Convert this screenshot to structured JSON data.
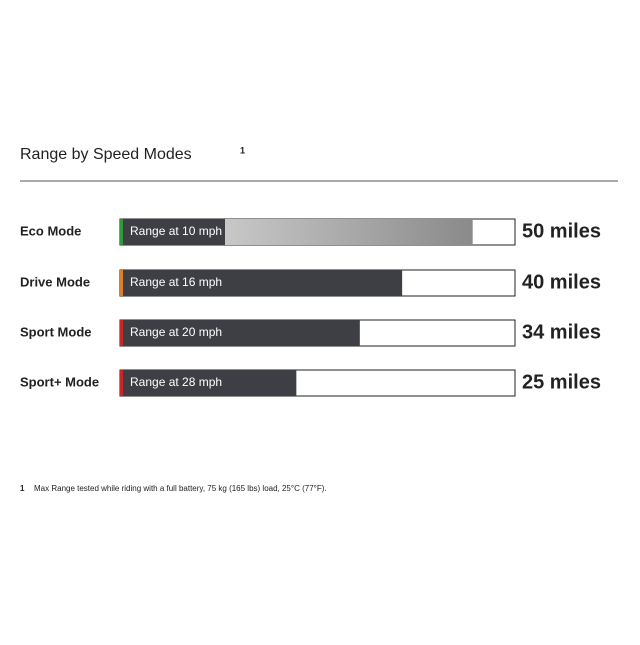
{
  "chart_data": {
    "type": "bar",
    "orientation": "horizontal",
    "title": "Range by Speed Modes",
    "title_note": "1",
    "categories": [
      "Eco Mode",
      "Drive Mode",
      "Sport Mode",
      "Sport+ Mode"
    ],
    "bar_labels": [
      "Range at 10 mph",
      "Range at 16 mph",
      "Range at 20 mph",
      "Range at 28 mph"
    ],
    "values": [
      50,
      40,
      34,
      25
    ],
    "value_labels": [
      "50 miles",
      "40 miles",
      "34 miles",
      "25 miles"
    ],
    "accent_colors": [
      "#2e9a3a",
      "#d9822b",
      "#c62828",
      "#c62828"
    ],
    "color": "#3e3f45",
    "xlim": [
      0,
      56
    ],
    "footnote_marker": "1",
    "footnote": "Max Range tested while riding with a full battery, 75 kg (165 lbs) load, 25°C (77°F)."
  }
}
